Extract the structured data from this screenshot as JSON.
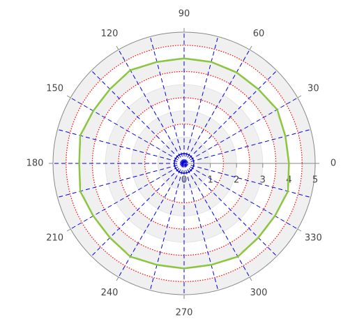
{
  "chart_data": {
    "type": "polar",
    "theta": [
      0,
      15,
      30,
      45,
      60,
      75,
      90,
      105,
      120,
      135,
      150,
      165,
      180,
      195,
      210,
      225,
      240,
      255,
      270,
      285,
      300,
      315,
      330,
      345
    ],
    "series": [
      {
        "color": "#8cc63f",
        "values": [
          4,
          4,
          4.1,
          4,
          4,
          4,
          4,
          4,
          4.1,
          4,
          4,
          4.1,
          4,
          4.1,
          4,
          4,
          4.1,
          4,
          4,
          4,
          4.1,
          4,
          4,
          4.1
        ]
      }
    ],
    "thetaticks": [
      0,
      30,
      60,
      90,
      120,
      150,
      180,
      210,
      240,
      270,
      300,
      330
    ],
    "rlim": [
      0,
      5
    ],
    "rticks": [
      0,
      1,
      2,
      3,
      4,
      5
    ],
    "circles": {
      "color": "#ff0000",
      "values": [
        1.5,
        2.5,
        3.5,
        4.5
      ]
    },
    "spoke_color": "#0000dd"
  }
}
